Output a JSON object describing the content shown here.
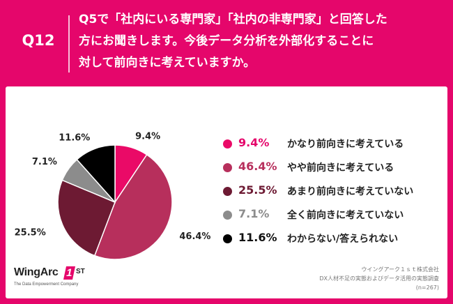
{
  "header": {
    "question_label": "Q12",
    "question_lines": [
      "Q5で「社内にいる専門家」「社内の非専門家」と回答した",
      "方にお聞きします。今後データ分析を外部化することに",
      "対して前向きに考えていますか。"
    ]
  },
  "chart_data": {
    "type": "pie",
    "title": "",
    "start": "top",
    "direction": "clockwise",
    "slices": [
      {
        "label": "かなり前向きに考えている",
        "value": 9.4,
        "value_label": "9.4%",
        "color": "#ea0a67",
        "text_color": "#e5066b"
      },
      {
        "label": "やや前向きに考えている",
        "value": 46.4,
        "value_label": "46.4%",
        "color": "#b72f5c",
        "text_color": "#b72f5c"
      },
      {
        "label": "あまり前向きに考えていない",
        "value": 25.5,
        "value_label": "25.5%",
        "color": "#6d1a33",
        "text_color": "#6d1a33"
      },
      {
        "label": "全く前向きに考えていない",
        "value": 7.1,
        "value_label": "7.1%",
        "color": "#8c8c8c",
        "text_color": "#8c8c8c"
      },
      {
        "label": "わからない/答えられない",
        "value": 11.6,
        "value_label": "11.6%",
        "color": "#000000",
        "text_color": "#111111"
      }
    ],
    "legend_placement": "right"
  },
  "logo": {
    "name": "WingArc",
    "mark": "1",
    "suffix": "ST",
    "tagline": "The Data Empowerment Company"
  },
  "source": {
    "company": "ウイングアーク１ｓｔ株式会社",
    "survey": "DX人材不足の実態およびデータ活用の実態調査",
    "sample": "(n=267)"
  }
}
